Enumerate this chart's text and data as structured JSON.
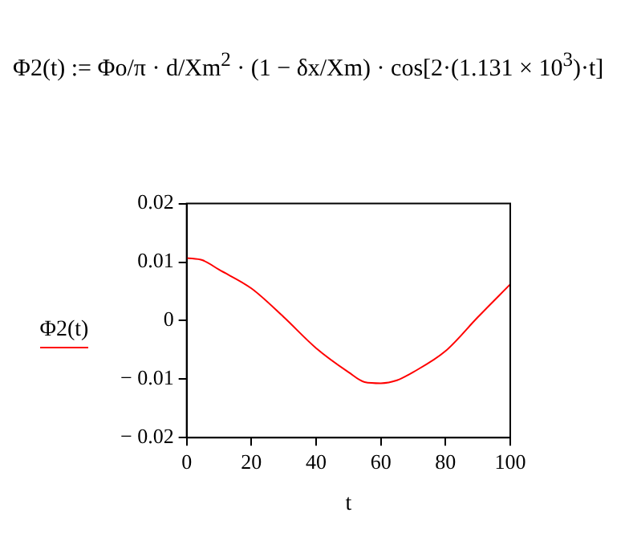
{
  "chart_data": {
    "type": "line",
    "title": "Φ2(t) := Φo/π · d/Xm$^{2}$ · (1 − δx/Xm) · cos[2·(1.131 × 10$^{3}$)·t]",
    "xlabel": "t",
    "x": [
      0,
      5,
      10,
      20,
      30,
      40,
      50,
      55,
      60,
      65,
      70,
      80,
      90,
      100
    ],
    "series": [
      {
        "name": "Φ2(t)",
        "color": "#ff0000",
        "values": [
          0.0107,
          0.0103,
          0.0087,
          0.0055,
          0.0006,
          -0.0047,
          -0.0088,
          -0.0105,
          -0.0107,
          -0.0102,
          -0.0088,
          -0.0052,
          0.0006,
          0.0062
        ]
      }
    ],
    "xlim": [
      0,
      100
    ],
    "xticks": [
      0,
      20,
      40,
      60,
      80,
      100
    ],
    "ylim": [
      -0.02,
      0.02
    ],
    "yticks": [
      -0.02,
      -0.01,
      0,
      0.01,
      0.02
    ],
    "grid": false,
    "legend": "left",
    "marker": "none",
    "line_style": "solid"
  }
}
